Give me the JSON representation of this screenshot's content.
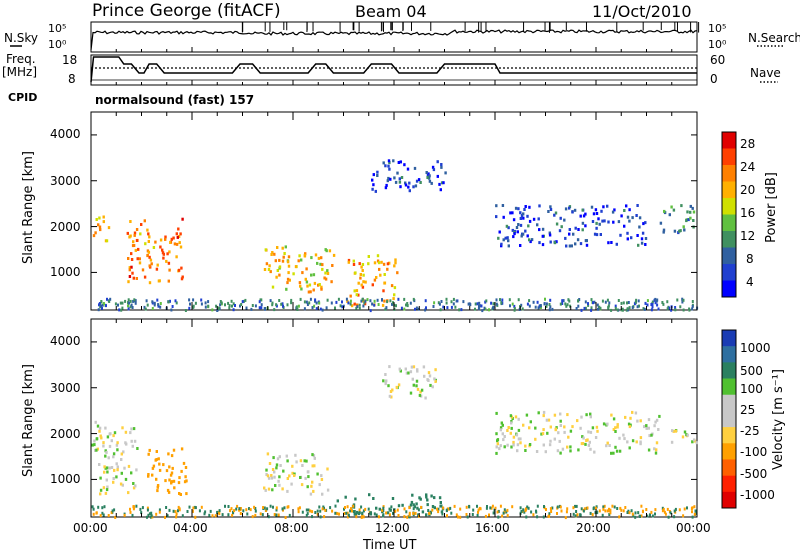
{
  "header": {
    "station": "Prince George (fitACF)",
    "beam": "Beam 04",
    "date": "11/Oct/2010"
  },
  "panels": {
    "nsky_label": "N.Sky",
    "nsky_ticks": [
      "10^5",
      "10^0"
    ],
    "nsearch_label": "N.Search",
    "nsearch_ticks": [
      "10^5",
      "10^0"
    ],
    "freq_label_1": "Freq.",
    "freq_label_2": "[MHz]",
    "freq_ticks": [
      "18",
      "8"
    ],
    "nave_label": "Nave",
    "nave_ticks": [
      "60",
      "0"
    ],
    "cpid_label": "CPID",
    "cpid_value": "normalsound (fast) 157"
  },
  "axes": {
    "ylabel": "Slant Range [km]",
    "yticks": [
      "4000",
      "3000",
      "2000",
      "1000"
    ],
    "xticks": [
      "00:00",
      "04:00",
      "08:00",
      "12:00",
      "16:00",
      "20:00",
      "00:00"
    ],
    "xlabel": "Time UT"
  },
  "colorbars": {
    "power": {
      "label": "Power [dB]",
      "ticks": [
        "28",
        "24",
        "20",
        "16",
        "12",
        "8",
        "4"
      ],
      "colors": [
        "#e00000",
        "#ff4000",
        "#ff8000",
        "#ffb000",
        "#d0e000",
        "#60c040",
        "#409060",
        "#3060a0",
        "#2040d0",
        "#0000ff"
      ]
    },
    "velocity": {
      "label": "Velocity [m s⁻¹]",
      "ticks": [
        "1000",
        "500",
        "100",
        "25",
        "-25",
        "-100",
        "-500",
        "-1000"
      ],
      "colors": [
        "#1a3cb4",
        "#2e6fa0",
        "#2a8060",
        "#50c030",
        "#c8c8c8",
        "#c8c8c8",
        "#ffd040",
        "#ffa000",
        "#ff6000",
        "#ff2000",
        "#e00000"
      ]
    }
  },
  "chart_data": [
    {
      "type": "heatmap",
      "title": "Power",
      "xlabel": "Time UT",
      "ylabel": "Slant Range [km]",
      "xlim": [
        "00:00",
        "00:00"
      ],
      "ylim": [
        180,
        4500
      ],
      "regions": [
        {
          "t": [
            0.0,
            0.7
          ],
          "r": [
            1700,
            2300
          ],
          "value": 22
        },
        {
          "t": [
            1.4,
            3.6
          ],
          "r": [
            800,
            2200
          ],
          "value": 24
        },
        {
          "t": [
            6.8,
            9.6
          ],
          "r": [
            600,
            1600
          ],
          "value": 20
        },
        {
          "t": [
            10.1,
            12.1
          ],
          "r": [
            300,
            1400
          ],
          "value": 22
        },
        {
          "t": [
            11.0,
            14.0
          ],
          "r": [
            2800,
            3500
          ],
          "value": 6
        },
        {
          "t": [
            16.0,
            22.0
          ],
          "r": [
            1600,
            2500
          ],
          "value": 6
        },
        {
          "t": [
            22.5,
            24.0
          ],
          "r": [
            1900,
            2500
          ],
          "value": 10
        }
      ]
    },
    {
      "type": "heatmap",
      "title": "Velocity",
      "xlabel": "Time UT",
      "ylabel": "Slant Range [km]",
      "xlim": [
        "00:00",
        "00:00"
      ],
      "ylim": [
        180,
        4500
      ],
      "regions": [
        {
          "t": [
            0.0,
            1.8
          ],
          "r": [
            700,
            2300
          ],
          "value": 0
        },
        {
          "t": [
            2.2,
            3.8
          ],
          "r": [
            700,
            1700
          ],
          "value": -150
        },
        {
          "t": [
            6.8,
            9.4
          ],
          "r": [
            700,
            1600
          ],
          "value": 0
        },
        {
          "t": [
            9.6,
            14.0
          ],
          "r": [
            250,
            700
          ],
          "value": 200
        },
        {
          "t": [
            11.5,
            13.8
          ],
          "r": [
            2800,
            3500
          ],
          "value": 0
        },
        {
          "t": [
            16.0,
            22.5
          ],
          "r": [
            1600,
            2500
          ],
          "value": 0
        },
        {
          "t": [
            22.8,
            24.0
          ],
          "r": [
            1800,
            2200
          ],
          "value": 0
        }
      ]
    }
  ]
}
